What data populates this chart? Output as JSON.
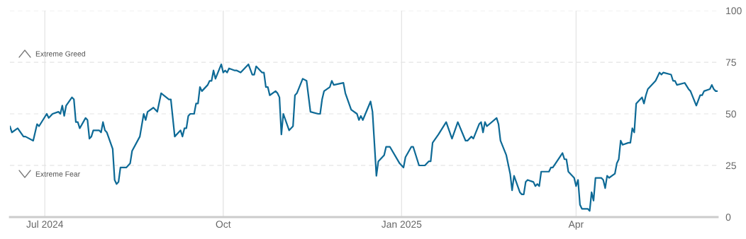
{
  "chart_data": {
    "type": "line",
    "x": [
      "2024-06-13",
      "2024-06-14",
      "2024-06-17",
      "2024-06-20",
      "2024-06-21",
      "2024-06-25",
      "2024-06-27",
      "2024-06-28",
      "2024-07-02",
      "2024-07-03",
      "2024-07-05",
      "2024-07-08",
      "2024-07-09",
      "2024-07-10",
      "2024-07-11",
      "2024-07-12",
      "2024-07-15",
      "2024-07-16",
      "2024-07-17",
      "2024-07-18",
      "2024-07-19",
      "2024-07-22",
      "2024-07-23",
      "2024-07-24",
      "2024-07-25",
      "2024-07-26",
      "2024-07-29",
      "2024-07-30",
      "2024-07-31",
      "2024-08-01",
      "2024-08-02",
      "2024-08-05",
      "2024-08-06",
      "2024-08-07",
      "2024-08-08",
      "2024-08-09",
      "2024-08-12",
      "2024-08-14",
      "2024-08-15",
      "2024-08-19",
      "2024-08-21",
      "2024-08-22",
      "2024-08-23",
      "2024-08-26",
      "2024-08-28",
      "2024-08-30",
      "2024-09-03",
      "2024-09-04",
      "2024-09-06",
      "2024-09-09",
      "2024-09-10",
      "2024-09-11",
      "2024-09-12",
      "2024-09-13",
      "2024-09-14",
      "2024-09-16",
      "2024-09-17",
      "2024-09-18",
      "2024-09-19",
      "2024-09-20",
      "2024-09-23",
      "2024-09-24",
      "2024-09-25",
      "2024-09-26",
      "2024-09-27",
      "2024-09-30",
      "2024-10-01",
      "2024-10-02",
      "2024-10-03",
      "2024-10-04",
      "2024-10-07",
      "2024-10-08",
      "2024-10-10",
      "2024-10-14",
      "2024-10-16",
      "2024-10-17",
      "2024-10-18",
      "2024-10-21",
      "2024-10-22",
      "2024-10-23",
      "2024-10-24",
      "2024-10-25",
      "2024-10-28",
      "2024-10-29",
      "2024-10-30",
      "2024-10-31",
      "2024-11-01",
      "2024-11-04",
      "2024-11-06",
      "2024-11-07",
      "2024-11-08",
      "2024-11-11",
      "2024-11-13",
      "2024-11-15",
      "2024-11-19",
      "2024-11-20",
      "2024-11-21",
      "2024-11-22",
      "2024-11-25",
      "2024-11-26",
      "2024-11-27",
      "2024-12-02",
      "2024-12-03",
      "2024-12-06",
      "2024-12-09",
      "2024-12-10",
      "2024-12-11",
      "2024-12-12",
      "2024-12-16",
      "2024-12-17",
      "2024-12-19",
      "2024-12-20",
      "2024-12-23",
      "2024-12-24",
      "2024-12-26",
      "2024-12-31",
      "2025-01-02",
      "2025-01-03",
      "2025-01-06",
      "2025-01-07",
      "2025-01-10",
      "2025-01-13",
      "2025-01-15",
      "2025-01-16",
      "2025-01-17",
      "2025-01-20",
      "2025-01-24",
      "2025-01-27",
      "2025-01-30",
      "2025-02-03",
      "2025-02-04",
      "2025-02-06",
      "2025-02-07",
      "2025-02-10",
      "2025-02-11",
      "2025-02-12",
      "2025-02-13",
      "2025-02-14",
      "2025-02-19",
      "2025-02-20",
      "2025-02-21",
      "2025-02-24",
      "2025-02-26",
      "2025-02-27",
      "2025-02-28",
      "2025-03-03",
      "2025-03-04",
      "2025-03-05",
      "2025-03-06",
      "2025-03-07",
      "2025-03-10",
      "2025-03-11",
      "2025-03-12",
      "2025-03-13",
      "2025-03-14",
      "2025-03-17",
      "2025-03-18",
      "2025-03-19",
      "2025-03-20",
      "2025-03-25",
      "2025-03-26",
      "2025-03-27",
      "2025-03-28",
      "2025-03-31",
      "2025-04-01",
      "2025-04-02",
      "2025-04-03",
      "2025-04-04",
      "2025-04-07",
      "2025-04-08",
      "2025-04-09",
      "2025-04-10",
      "2025-04-11",
      "2025-04-14",
      "2025-04-15",
      "2025-04-16",
      "2025-04-17",
      "2025-04-18",
      "2025-04-21",
      "2025-04-22",
      "2025-04-23",
      "2025-04-24",
      "2025-04-25",
      "2025-04-28",
      "2025-04-29",
      "2025-04-30",
      "2025-05-01",
      "2025-05-02",
      "2025-05-05",
      "2025-05-06",
      "2025-05-07",
      "2025-05-08",
      "2025-05-12",
      "2025-05-14",
      "2025-05-15",
      "2025-05-16",
      "2025-05-20",
      "2025-05-21",
      "2025-05-22",
      "2025-05-23",
      "2025-05-27",
      "2025-05-29",
      "2025-05-30",
      "2025-06-02",
      "2025-06-04",
      "2025-06-05",
      "2025-06-06",
      "2025-06-09",
      "2025-06-10",
      "2025-06-11",
      "2025-06-12",
      "2025-06-13"
    ],
    "series": [
      {
        "color": "#0e6a96",
        "values": [
          44,
          41,
          43,
          39,
          39,
          37,
          45,
          44,
          50,
          48,
          50,
          51,
          50,
          54,
          49,
          54,
          58,
          57,
          46,
          46,
          43,
          48,
          47,
          38,
          39,
          42,
          42,
          41,
          46,
          42,
          41,
          33,
          18,
          16,
          17,
          24,
          24,
          26,
          32,
          39,
          50,
          47,
          51,
          53,
          51,
          60,
          57,
          57,
          39,
          42,
          39,
          43,
          43,
          49,
          50,
          50,
          55,
          55,
          63,
          61,
          64,
          66,
          66,
          71,
          67,
          74,
          70,
          71,
          70,
          72,
          71,
          71,
          70,
          74,
          69,
          69,
          73,
          70,
          70,
          63,
          63,
          59,
          61,
          60,
          58,
          40,
          50,
          42,
          44,
          59,
          60,
          67,
          66,
          51,
          50,
          50,
          57,
          61,
          63,
          66,
          64,
          65,
          60,
          52,
          50,
          47,
          49,
          47,
          56,
          51,
          20,
          27,
          30,
          34,
          34,
          26,
          24,
          29,
          34,
          34,
          25,
          25,
          27,
          27,
          36,
          40,
          46,
          38,
          46,
          37,
          37,
          39,
          38,
          45,
          46,
          41,
          46,
          44,
          48,
          45,
          37,
          30,
          21,
          13,
          20,
          12,
          11,
          11,
          17,
          18,
          17,
          15,
          16,
          15,
          22,
          22,
          22,
          24,
          24,
          31,
          28,
          28,
          22,
          19,
          15,
          18,
          6,
          4,
          4,
          3,
          12,
          8,
          19,
          19,
          18,
          14,
          20,
          19,
          21,
          26,
          28,
          37,
          35,
          36,
          36,
          43,
          41,
          55,
          58,
          55,
          59,
          62,
          66,
          70,
          69,
          70,
          69,
          66,
          66,
          64,
          65,
          62,
          61,
          54,
          59,
          59,
          61,
          62,
          64,
          62,
          61,
          61
        ]
      }
    ],
    "xlim": [
      "2024-06-13",
      "2025-06-13"
    ],
    "xticks": [
      {
        "value": "2024-07-01",
        "label": "Jul 2024"
      },
      {
        "value": "2024-10-01",
        "label": "Oct"
      },
      {
        "value": "2025-01-01",
        "label": "Jan 2025"
      },
      {
        "value": "2025-04-01",
        "label": "Apr"
      }
    ],
    "ylim": [
      0,
      100
    ],
    "yticks": [
      0,
      25,
      50,
      75,
      100
    ],
    "grid": true,
    "legend": false,
    "marker": "none",
    "line_style": "solid",
    "annotations": [
      "Extreme Greed",
      "Extreme Fear"
    ]
  }
}
